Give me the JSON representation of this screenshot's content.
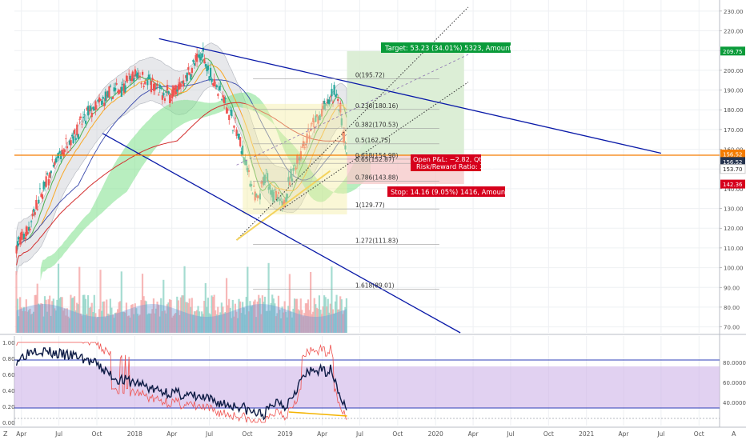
{
  "chart_data": [
    {
      "type": "candlestick",
      "axis": {
        "ylim": [
          67,
          234
        ],
        "y_ticks": [
          70,
          80,
          90,
          100,
          110,
          120,
          130,
          140,
          150,
          160,
          170,
          180,
          190,
          200,
          210,
          220,
          230
        ],
        "x_range": [
          "2017-03-15",
          "2021-11-20"
        ],
        "x_ticks": [
          {
            "date": "2017-04-01",
            "label": "Apr"
          },
          {
            "date": "2017-07-01",
            "label": "Jul"
          },
          {
            "date": "2017-10-01",
            "label": "Oct"
          },
          {
            "date": "2018-01-01",
            "label": "2018"
          },
          {
            "date": "2018-04-01",
            "label": "Apr"
          },
          {
            "date": "2018-07-01",
            "label": "Jul"
          },
          {
            "date": "2018-10-01",
            "label": "Oct"
          },
          {
            "date": "2019-01-01",
            "label": "2019"
          },
          {
            "date": "2019-04-01",
            "label": "Apr"
          },
          {
            "date": "2019-07-01",
            "label": "Jul"
          },
          {
            "date": "2019-10-01",
            "label": "Oct"
          },
          {
            "date": "2020-01-01",
            "label": "2020"
          },
          {
            "date": "2020-04-01",
            "label": "Apr"
          },
          {
            "date": "2020-07-01",
            "label": "Jul"
          },
          {
            "date": "2020-10-01",
            "label": "Oct"
          },
          {
            "date": "2021-01-01",
            "label": "2021"
          },
          {
            "date": "2021-04-01",
            "label": "Apr"
          },
          {
            "date": "2021-07-01",
            "label": "Jul"
          },
          {
            "date": "2021-10-01",
            "label": "Oct"
          }
        ],
        "grid": true
      },
      "price_path": [
        [
          "2017-03-20",
          111
        ],
        [
          "2017-04-15",
          118
        ],
        [
          "2017-05-20",
          138
        ],
        [
          "2017-06-15",
          150
        ],
        [
          "2017-07-20",
          162
        ],
        [
          "2017-08-15",
          170
        ],
        [
          "2017-09-10",
          178
        ],
        [
          "2017-10-10",
          183
        ],
        [
          "2017-11-01",
          187
        ],
        [
          "2017-12-01",
          192
        ],
        [
          "2018-01-10",
          198
        ],
        [
          "2018-02-05",
          194
        ],
        [
          "2018-03-01",
          188
        ],
        [
          "2018-04-05",
          188
        ],
        [
          "2018-05-01",
          195
        ],
        [
          "2018-06-15",
          209
        ],
        [
          "2018-07-05",
          197
        ],
        [
          "2018-08-01",
          187
        ],
        [
          "2018-09-01",
          172
        ],
        [
          "2018-10-01",
          150
        ],
        [
          "2018-10-25",
          132
        ],
        [
          "2018-11-15",
          147
        ],
        [
          "2018-12-05",
          137
        ],
        [
          "2018-12-24",
          131
        ],
        [
          "2019-01-25",
          152
        ],
        [
          "2019-02-20",
          165
        ],
        [
          "2019-03-20",
          175
        ],
        [
          "2019-04-20",
          185
        ],
        [
          "2019-05-05",
          190
        ],
        [
          "2019-05-20",
          172
        ],
        [
          "2019-05-31",
          156
        ]
      ],
      "last_price": 153.7,
      "annotations": {
        "target_label": "Target: 53.23 (34.01%) 5323, Amount: 1904.91",
        "stop_label": "Stop: 14.16 (9.05%) 1416, Amount: 759.28",
        "open_pl_label": "Open P&L: −2.82, Qty: 17",
        "risk_reward_label": "Risk/Reward Ratio: 3.76"
      },
      "fib_levels": [
        {
          "label": "0(195.72)",
          "value": 195.72
        },
        {
          "label": "0.236(180.16)",
          "value": 180.16
        },
        {
          "label": "0.382(170.53)",
          "value": 170.53
        },
        {
          "label": "0.5(162.75)",
          "value": 162.75
        },
        {
          "label": "0.618(154.98)",
          "value": 154.98
        },
        {
          "label": "0.65(152.87)",
          "value": 152.87
        },
        {
          "label": "0.786(143.88)",
          "value": 143.88
        },
        {
          "label": "1(129.77)",
          "value": 129.77
        },
        {
          "label": "1.272(111.83)",
          "value": 111.83
        },
        {
          "label": "1.618(89.01)",
          "value": 89.01
        }
      ],
      "price_tags": [
        {
          "label": "209.75",
          "value": 209.75,
          "color": "#0a9b3a"
        },
        {
          "label": "156.52",
          "value": 157.6,
          "color": "#f57c00"
        },
        {
          "label": "156.52",
          "value": 153.8,
          "color": "#26344f"
        },
        {
          "label": "153.70",
          "value": 150.0,
          "color": "#ffffff",
          "text_color": "#222222"
        },
        {
          "label": "142.36",
          "value": 142.36,
          "color": "#d6001c"
        }
      ],
      "horizontal_line": {
        "value": 157.0,
        "color": "#f57c00"
      },
      "colors": {
        "up": "#26a69a",
        "down": "#ef5350",
        "trend": "#0a1aa8",
        "ma200": "#d32f2f"
      }
    },
    {
      "type": "line",
      "axis": {
        "left_ticks": [
          0.0,
          0.2,
          0.4,
          0.6,
          0.8,
          1.0
        ],
        "left_labels": [
          "0.00",
          "0.20",
          "0.40",
          "0.60",
          "0.80",
          "1.00"
        ],
        "right_ticks": [
          40,
          60,
          80
        ],
        "right_labels": [
          "40.0000",
          "60.0000",
          "80.0000"
        ],
        "band": [
          0.18,
          0.7
        ],
        "upper_line": 0.78,
        "lower_line": 0.18
      },
      "oscillator": [
        [
          "2017-03-20",
          0.78
        ],
        [
          "2017-05-01",
          0.92
        ],
        [
          "2017-07-01",
          0.85
        ],
        [
          "2017-08-20",
          0.82
        ],
        [
          "2017-10-01",
          0.72
        ],
        [
          "2017-11-15",
          0.55
        ],
        [
          "2018-01-15",
          0.48
        ],
        [
          "2018-02-20",
          0.4
        ],
        [
          "2018-04-15",
          0.36
        ],
        [
          "2018-06-15",
          0.3
        ],
        [
          "2018-08-15",
          0.22
        ],
        [
          "2018-09-15",
          0.2
        ],
        [
          "2018-10-15",
          0.12
        ],
        [
          "2018-11-10",
          0.1
        ],
        [
          "2018-12-15",
          0.28
        ],
        [
          "2019-01-01",
          0.2
        ],
        [
          "2019-02-15",
          0.58
        ],
        [
          "2019-03-15",
          0.66
        ],
        [
          "2019-04-01",
          0.64
        ],
        [
          "2019-04-25",
          0.66
        ],
        [
          "2019-05-10",
          0.4
        ],
        [
          "2019-05-31",
          0.12
        ]
      ],
      "colors": {
        "line": "#0d1b45",
        "signal": "#ef5350",
        "band": "#cdb3e8"
      }
    }
  ],
  "bottom_bar": {
    "left_glyph": "Z",
    "right_glyph": "A"
  }
}
